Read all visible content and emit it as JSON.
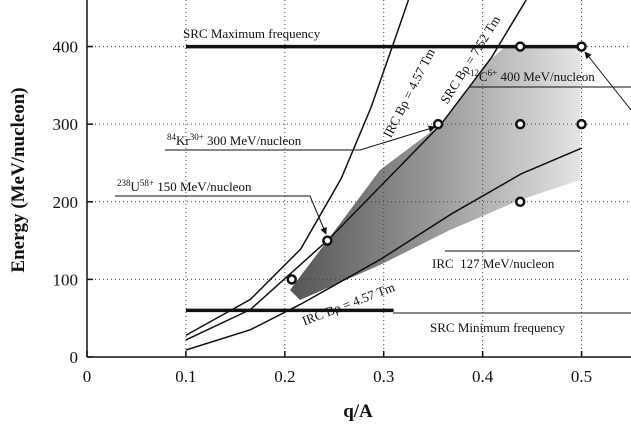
{
  "chart_data": {
    "type": "line",
    "xlabel": "q/A",
    "ylabel": "Energy (MeV/nucleon)",
    "xlim": [
      0,
      0.55
    ],
    "ylim": [
      0,
      460
    ],
    "xticks": [
      0,
      0.1,
      0.2,
      0.3,
      0.4,
      0.5
    ],
    "yticks": [
      0,
      100,
      200,
      300,
      400
    ],
    "grid": true,
    "series": [
      {
        "name": "IRC Bρ = 4.57 Tm",
        "color": "#111111",
        "x": [
          0.1,
          0.165,
          0.216,
          0.257,
          0.287,
          0.312,
          0.325
        ],
        "values": [
          28,
          74,
          139,
          230,
          321,
          412,
          460
        ]
      },
      {
        "name": "SRC Bρ = 7.52 Tm",
        "color": "#111111",
        "x": [
          0.1,
          0.165,
          0.243,
          0.358,
          0.409,
          0.444
        ],
        "values": [
          22,
          61,
          150,
          300,
          386,
          460
        ]
      },
      {
        "name": "IRC Bρ = 4.57 Tm",
        "color": "#111111",
        "x": [
          0.1,
          0.165,
          0.216,
          0.297,
          0.368,
          0.439,
          0.5
        ],
        "values": [
          9,
          35,
          68,
          126,
          184,
          236,
          269
        ]
      }
    ],
    "points": {
      "x": [
        0.207,
        0.243,
        0.355,
        0.438,
        0.5,
        0.438,
        0.5,
        0.438
      ],
      "values": [
        100,
        150,
        300,
        400,
        400,
        300,
        300,
        200
      ]
    },
    "hlines": [
      {
        "name": "SRC Maximum frequency",
        "value": 400,
        "x": [
          0.1,
          0.5
        ]
      },
      {
        "name": "SRC Minimum frequency",
        "value": 60,
        "x": [
          0.1,
          0.31
        ]
      }
    ],
    "irc_label": "IRC  127 MeV/nucleon",
    "annotations": [
      {
        "mass": "238",
        "element": "U",
        "charge": "58+",
        "text": " 150 MeV/nucleon"
      },
      {
        "mass": "84",
        "element": "Kr",
        "charge": "30+",
        "text": " 300 MeV/nucleon"
      },
      {
        "mass": "12",
        "element": "C",
        "charge": "6+",
        "text": " 400 MeV/nucleon"
      }
    ]
  }
}
